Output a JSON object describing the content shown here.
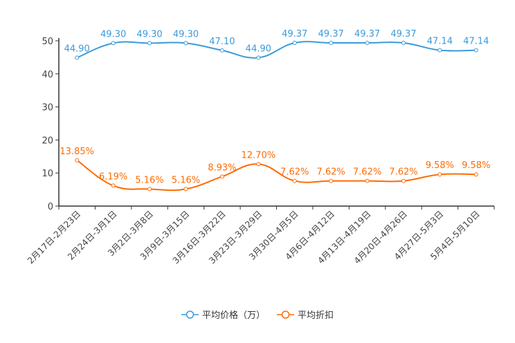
{
  "chart_data": {
    "type": "line",
    "categories": [
      "2月17日-2月23日",
      "2月24日-3月1日",
      "3月2日-3月8日",
      "3月9日-3月15日",
      "3月16日-3月22日",
      "3月23日-3月29日",
      "3月30日-4月5日",
      "4月6日-4月12日",
      "4月13日-4月19日",
      "4月20日-4月26日",
      "4月27日-5月3日",
      "5月4日-5月10日"
    ],
    "series": [
      {
        "name": "平均价格（万）",
        "color": "#3a9ad9",
        "values": [
          44.9,
          49.3,
          49.3,
          49.3,
          47.1,
          44.9,
          49.37,
          49.37,
          49.37,
          49.37,
          47.14,
          47.14
        ],
        "labels": [
          "44.90",
          "49.30",
          "49.30",
          "49.30",
          "47.10",
          "44.90",
          "49.37",
          "49.37",
          "49.37",
          "49.37",
          "47.14",
          "47.14"
        ]
      },
      {
        "name": "平均折扣",
        "color": "#ff6a00",
        "values": [
          13.85,
          6.19,
          5.16,
          5.16,
          8.93,
          12.7,
          7.62,
          7.62,
          7.62,
          7.62,
          9.58,
          9.58
        ],
        "labels": [
          "13.85%",
          "6.19%",
          "5.16%",
          "5.16%",
          "8.93%",
          "12.70%",
          "7.62%",
          "7.62%",
          "7.62%",
          "7.62%",
          "9.58%",
          "9.58%"
        ]
      }
    ],
    "yticks": [
      "0",
      "10",
      "20",
      "30",
      "40",
      "50"
    ],
    "ylim": [
      0,
      50
    ],
    "grid": false,
    "legend_position": "bottom-center"
  }
}
